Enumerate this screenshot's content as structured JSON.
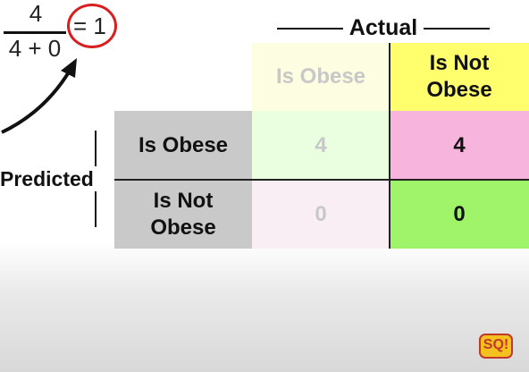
{
  "fraction": {
    "numerator": "4",
    "denominator": "4 + 0",
    "result": "= 1"
  },
  "axes": {
    "actual_label": "Actual",
    "predicted_label": "Predicted"
  },
  "columns": {
    "col1": "Is Obese",
    "col2_line1": "Is Not",
    "col2_line2": "Obese"
  },
  "rows": {
    "row1": "Is Obese",
    "row2_line1": "Is Not",
    "row2_line2": "Obese"
  },
  "matrix": {
    "obese_obese": "4",
    "obese_notobese": "4",
    "notobese_obese": "0",
    "notobese_notobese": "0"
  },
  "colors": {
    "accent_red": "#d81e1e",
    "cell_tp_faded": "#eafee0",
    "cell_fp": "#f7b4dc",
    "cell_fn_faded": "#f8eef4",
    "cell_tn": "#a0f46a",
    "hdr_yellow": "#ffff6e",
    "hdr_faded_yellow": "#fdfde2"
  },
  "logo": {
    "text": "SQ!"
  }
}
